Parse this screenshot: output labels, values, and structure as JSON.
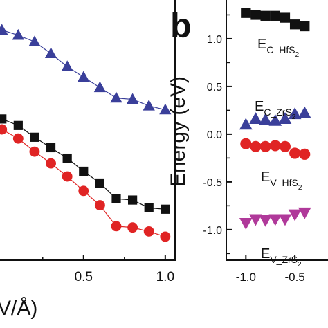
{
  "chart_data": [
    {
      "panel": "a",
      "type": "line",
      "xlabel": "V/Å)",
      "ylabel": "",
      "xlim": [
        -0.02,
        1.06
      ],
      "ylim": [
        0,
        1
      ],
      "x_ticks": [
        0.5,
        1.0
      ],
      "x_tick_labels": [
        "0.5",
        "1.0"
      ],
      "series": [
        {
          "name": "",
          "color": "#3a3f9a",
          "marker": "triangle-up",
          "x": [
            0.0,
            0.1,
            0.2,
            0.3,
            0.4,
            0.5,
            0.6,
            0.7,
            0.8,
            0.9,
            1.0
          ],
          "y": [
            0.88,
            0.86,
            0.835,
            0.79,
            0.74,
            0.7,
            0.66,
            0.62,
            0.615,
            0.59,
            0.575
          ]
        },
        {
          "name": "",
          "color": "#111111",
          "marker": "square",
          "x": [
            0.0,
            0.1,
            0.2,
            0.3,
            0.4,
            0.5,
            0.6,
            0.7,
            0.8,
            0.9,
            1.0
          ],
          "y": [
            0.54,
            0.515,
            0.47,
            0.43,
            0.39,
            0.34,
            0.295,
            0.235,
            0.23,
            0.2,
            0.195
          ]
        },
        {
          "name": "",
          "color": "#e02424",
          "marker": "circle",
          "x": [
            0.0,
            0.1,
            0.2,
            0.3,
            0.4,
            0.5,
            0.6,
            0.7,
            0.8,
            0.9,
            1.0
          ],
          "y": [
            0.5,
            0.465,
            0.415,
            0.37,
            0.32,
            0.265,
            0.21,
            0.13,
            0.125,
            0.11,
            0.09
          ]
        }
      ]
    },
    {
      "panel": "b",
      "panel_label": "b",
      "type": "scatter",
      "xlabel": "",
      "ylabel": "Energy (eV)",
      "xlim": [
        -1.2,
        -0.07
      ],
      "ylim": [
        -1.32,
        1.42
      ],
      "x_ticks": [
        -1.0,
        -0.5
      ],
      "x_tick_labels": [
        "-1.0",
        "-0.5"
      ],
      "y_ticks": [
        1.0,
        0.5,
        0.0,
        -0.5,
        -1.0
      ],
      "y_tick_labels": [
        "1.0",
        "0.5",
        "0.0",
        "-0.5",
        "-1.0"
      ],
      "series": [
        {
          "name": "E_C_HfS2",
          "label": "E",
          "label_sub": "C_HfS",
          "label_sub2": "2",
          "color": "#111111",
          "marker": "square",
          "x": [
            -1.0,
            -0.9,
            -0.8,
            -0.7,
            -0.6,
            -0.5,
            -0.4
          ],
          "y": [
            1.27,
            1.25,
            1.24,
            1.24,
            1.22,
            1.15,
            1.13
          ]
        },
        {
          "name": "E_C_ZrS2",
          "label": "E",
          "label_sub": "C_ZrS",
          "label_sub2": "2",
          "color": "#3a3f9a",
          "marker": "triangle-up",
          "x": [
            -1.0,
            -0.9,
            -0.8,
            -0.7,
            -0.6,
            -0.5,
            -0.4
          ],
          "y": [
            0.1,
            0.16,
            0.15,
            0.14,
            0.16,
            0.21,
            0.22
          ]
        },
        {
          "name": "E_V_HfS2",
          "label": "E",
          "label_sub": "V_HfS",
          "label_sub2": "2",
          "color": "#e02424",
          "marker": "circle",
          "x": [
            -1.0,
            -0.9,
            -0.8,
            -0.7,
            -0.6,
            -0.5,
            -0.4
          ],
          "y": [
            -0.1,
            -0.13,
            -0.13,
            -0.12,
            -0.13,
            -0.2,
            -0.21
          ]
        },
        {
          "name": "E_V_ZrS2",
          "label": "E",
          "label_sub": "V_ZrS",
          "label_sub2": "2",
          "color": "#b0399a",
          "marker": "triangle-down",
          "x": [
            -1.0,
            -0.9,
            -0.8,
            -0.7,
            -0.6,
            -0.5,
            -0.4
          ],
          "y": [
            -0.93,
            -0.89,
            -0.9,
            -0.89,
            -0.89,
            -0.84,
            -0.82
          ]
        }
      ]
    }
  ]
}
